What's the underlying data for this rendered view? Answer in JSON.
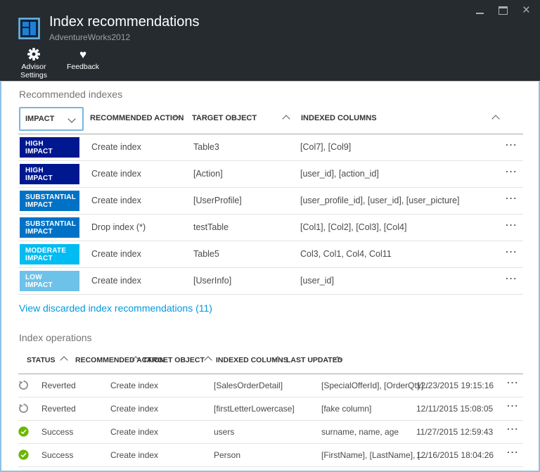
{
  "titlebar": {
    "title": "Index recommendations",
    "subtitle": "AdventureWorks2012"
  },
  "toolbar": {
    "advisor_settings_label": "Advisor Settings",
    "feedback_label": "Feedback"
  },
  "recommended": {
    "section_title": "Recommended indexes",
    "impact_filter_label": "IMPACT",
    "columns": {
      "recommended_action": "RECOMMENDED ACTION",
      "target_object": "TARGET OBJECT",
      "indexed_columns": "INDEXED COLUMNS"
    },
    "rows": [
      {
        "impact_line1": "HIGH",
        "impact_line2": "IMPACT",
        "level": "high",
        "action": "Create index",
        "target": "Table3",
        "indexed": "[Col7], [Col9]"
      },
      {
        "impact_line1": "HIGH",
        "impact_line2": "IMPACT",
        "level": "high",
        "action": "Create index",
        "target": "[Action]",
        "indexed": "[user_id], [action_id]"
      },
      {
        "impact_line1": "SUBSTANTIAL",
        "impact_line2": "IMPACT",
        "level": "substantial",
        "action": "Create index",
        "target": "[UserProfile]",
        "indexed": "[user_profile_id], [user_id], [user_picture]"
      },
      {
        "impact_line1": "SUBSTANTIAL",
        "impact_line2": "IMPACT",
        "level": "substantial",
        "action": "Drop index (*)",
        "target": "testTable",
        "indexed": "[Col1], [Col2], [Col3], [Col4]"
      },
      {
        "impact_line1": "MODERATE",
        "impact_line2": "IMPACT",
        "level": "moderate",
        "action": "Create index",
        "target": "Table5",
        "indexed": "Col3, Col1, Col4, Col11"
      },
      {
        "impact_line1": "LOW",
        "impact_line2": "IMPACT",
        "level": "low",
        "action": "Create index",
        "target": "[UserInfo]",
        "indexed": "[user_id]"
      }
    ]
  },
  "discarded_link_label": "View discarded index recommendations (11)",
  "operations": {
    "section_title": "Index operations",
    "columns": {
      "status": "STATUS",
      "recommended_action": "RECOMMENDED ACTION",
      "target_object": "TARGET OBJECT",
      "indexed_columns": "INDEXED COLUMNS",
      "last_updated": "LAST UPDATED"
    },
    "rows": [
      {
        "status": "Reverted",
        "status_icon": "revert-icon",
        "action": "Create index",
        "target": "[SalesOrderDetail]",
        "indexed": "[SpecialOfferId], [OrderQty]...",
        "updated": "12/23/2015 19:15:16"
      },
      {
        "status": "Reverted",
        "status_icon": "revert-icon",
        "action": "Create index",
        "target": "[firstLetterLowercase]",
        "indexed": "[fake column]",
        "updated": "12/11/2015 15:08:05"
      },
      {
        "status": "Success",
        "status_icon": "success-icon",
        "action": "Create index",
        "target": "users",
        "indexed": "surname, name, age",
        "updated": "11/27/2015 12:59:43"
      },
      {
        "status": "Success",
        "status_icon": "success-icon",
        "action": "Create index",
        "target": "Person",
        "indexed": "[FirstName], [LastName], [...",
        "updated": "12/16/2015 18:04:26"
      }
    ]
  },
  "ui": {
    "ellipsis": "...",
    "close_glyph": "×",
    "heart_glyph": "♥"
  },
  "colors": {
    "impact_high": "#00188f",
    "impact_substantial": "#0072c6",
    "impact_moderate": "#00bcf2",
    "impact_low": "#6dc2e9",
    "success_green": "#6bb700",
    "revert_gray": "#8b8f93",
    "link_blue": "#0099e0",
    "titlebar_bg": "#262b2f"
  }
}
